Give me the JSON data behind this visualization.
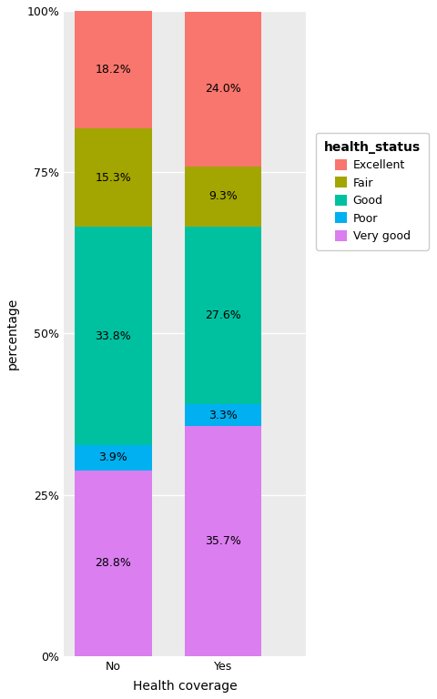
{
  "categories": [
    "No",
    "Yes"
  ],
  "health_statuses": [
    "Very good",
    "Poor",
    "Good",
    "Fair",
    "Excellent"
  ],
  "colors": {
    "Very good": "#DA7EF0",
    "Poor": "#00B0F0",
    "Good": "#00C19F",
    "Fair": "#A3A500",
    "Excellent": "#F8766D"
  },
  "values": {
    "No": {
      "Very good": 28.8,
      "Poor": 3.9,
      "Good": 33.8,
      "Fair": 15.3,
      "Excellent": 18.2
    },
    "Yes": {
      "Very good": 35.7,
      "Poor": 3.3,
      "Good": 27.6,
      "Fair": 9.3,
      "Excellent": 24.0
    }
  },
  "legend_order": [
    "Excellent",
    "Fair",
    "Good",
    "Poor",
    "Very good"
  ],
  "xlabel": "Health coverage",
  "ylabel": "percentage",
  "legend_title": "health_status",
  "ylim": [
    0,
    100
  ],
  "yticks": [
    0,
    25,
    50,
    75,
    100
  ],
  "ytick_labels": [
    "0%",
    "25%",
    "50%",
    "75%",
    "100%"
  ],
  "bar_width": 0.7,
  "x_positions": [
    0,
    1.0
  ],
  "xlim": [
    -0.45,
    1.75
  ],
  "background_color": "#FFFFFF",
  "plot_bg_color": "#EBEBEB",
  "grid_color": "#FFFFFF",
  "text_color": "#000000",
  "font_size_labels": 10,
  "font_size_ticks": 9,
  "font_size_bar_text": 9,
  "font_size_legend_title": 10,
  "font_size_legend": 9
}
